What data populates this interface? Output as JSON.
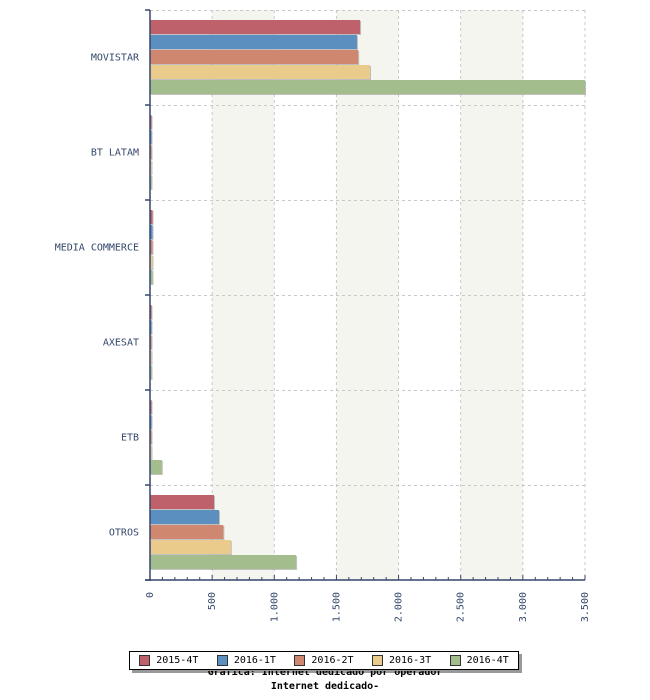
{
  "chart_data": {
    "type": "bar",
    "orientation": "horizontal",
    "title": "Grafica: Internet dedicado por operador",
    "subtitle": "Internet dedicado-",
    "xlabel": "",
    "ylabel": "",
    "xlim": [
      0,
      3500
    ],
    "x_ticks": [
      "0",
      "500",
      "1.000",
      "1.500",
      "2.000",
      "2.500",
      "3.000",
      "3.500"
    ],
    "x_tick_values": [
      0,
      500,
      1000,
      1500,
      2000,
      2500,
      3000,
      3500
    ],
    "grid": true,
    "legend_position": "bottom",
    "categories": [
      "MOVISTAR",
      "BT LATAM",
      "MEDIA COMMERCE",
      "AXESAT",
      "ETB",
      "OTROS"
    ],
    "series": [
      {
        "name": "2015-4T",
        "color": "#bf616a",
        "values": [
          1690,
          8,
          20,
          5,
          5,
          515
        ]
      },
      {
        "name": "2016-1T",
        "color": "#5b8fbf",
        "values": [
          1665,
          8,
          20,
          5,
          5,
          555
        ]
      },
      {
        "name": "2016-2T",
        "color": "#d08770",
        "values": [
          1675,
          8,
          20,
          5,
          5,
          590
        ]
      },
      {
        "name": "2016-3T",
        "color": "#ebcb8b",
        "values": [
          1770,
          8,
          20,
          5,
          5,
          650
        ]
      },
      {
        "name": "2016-4T",
        "color": "#a3be8c",
        "values": [
          3500,
          8,
          20,
          5,
          95,
          1175
        ]
      }
    ]
  }
}
